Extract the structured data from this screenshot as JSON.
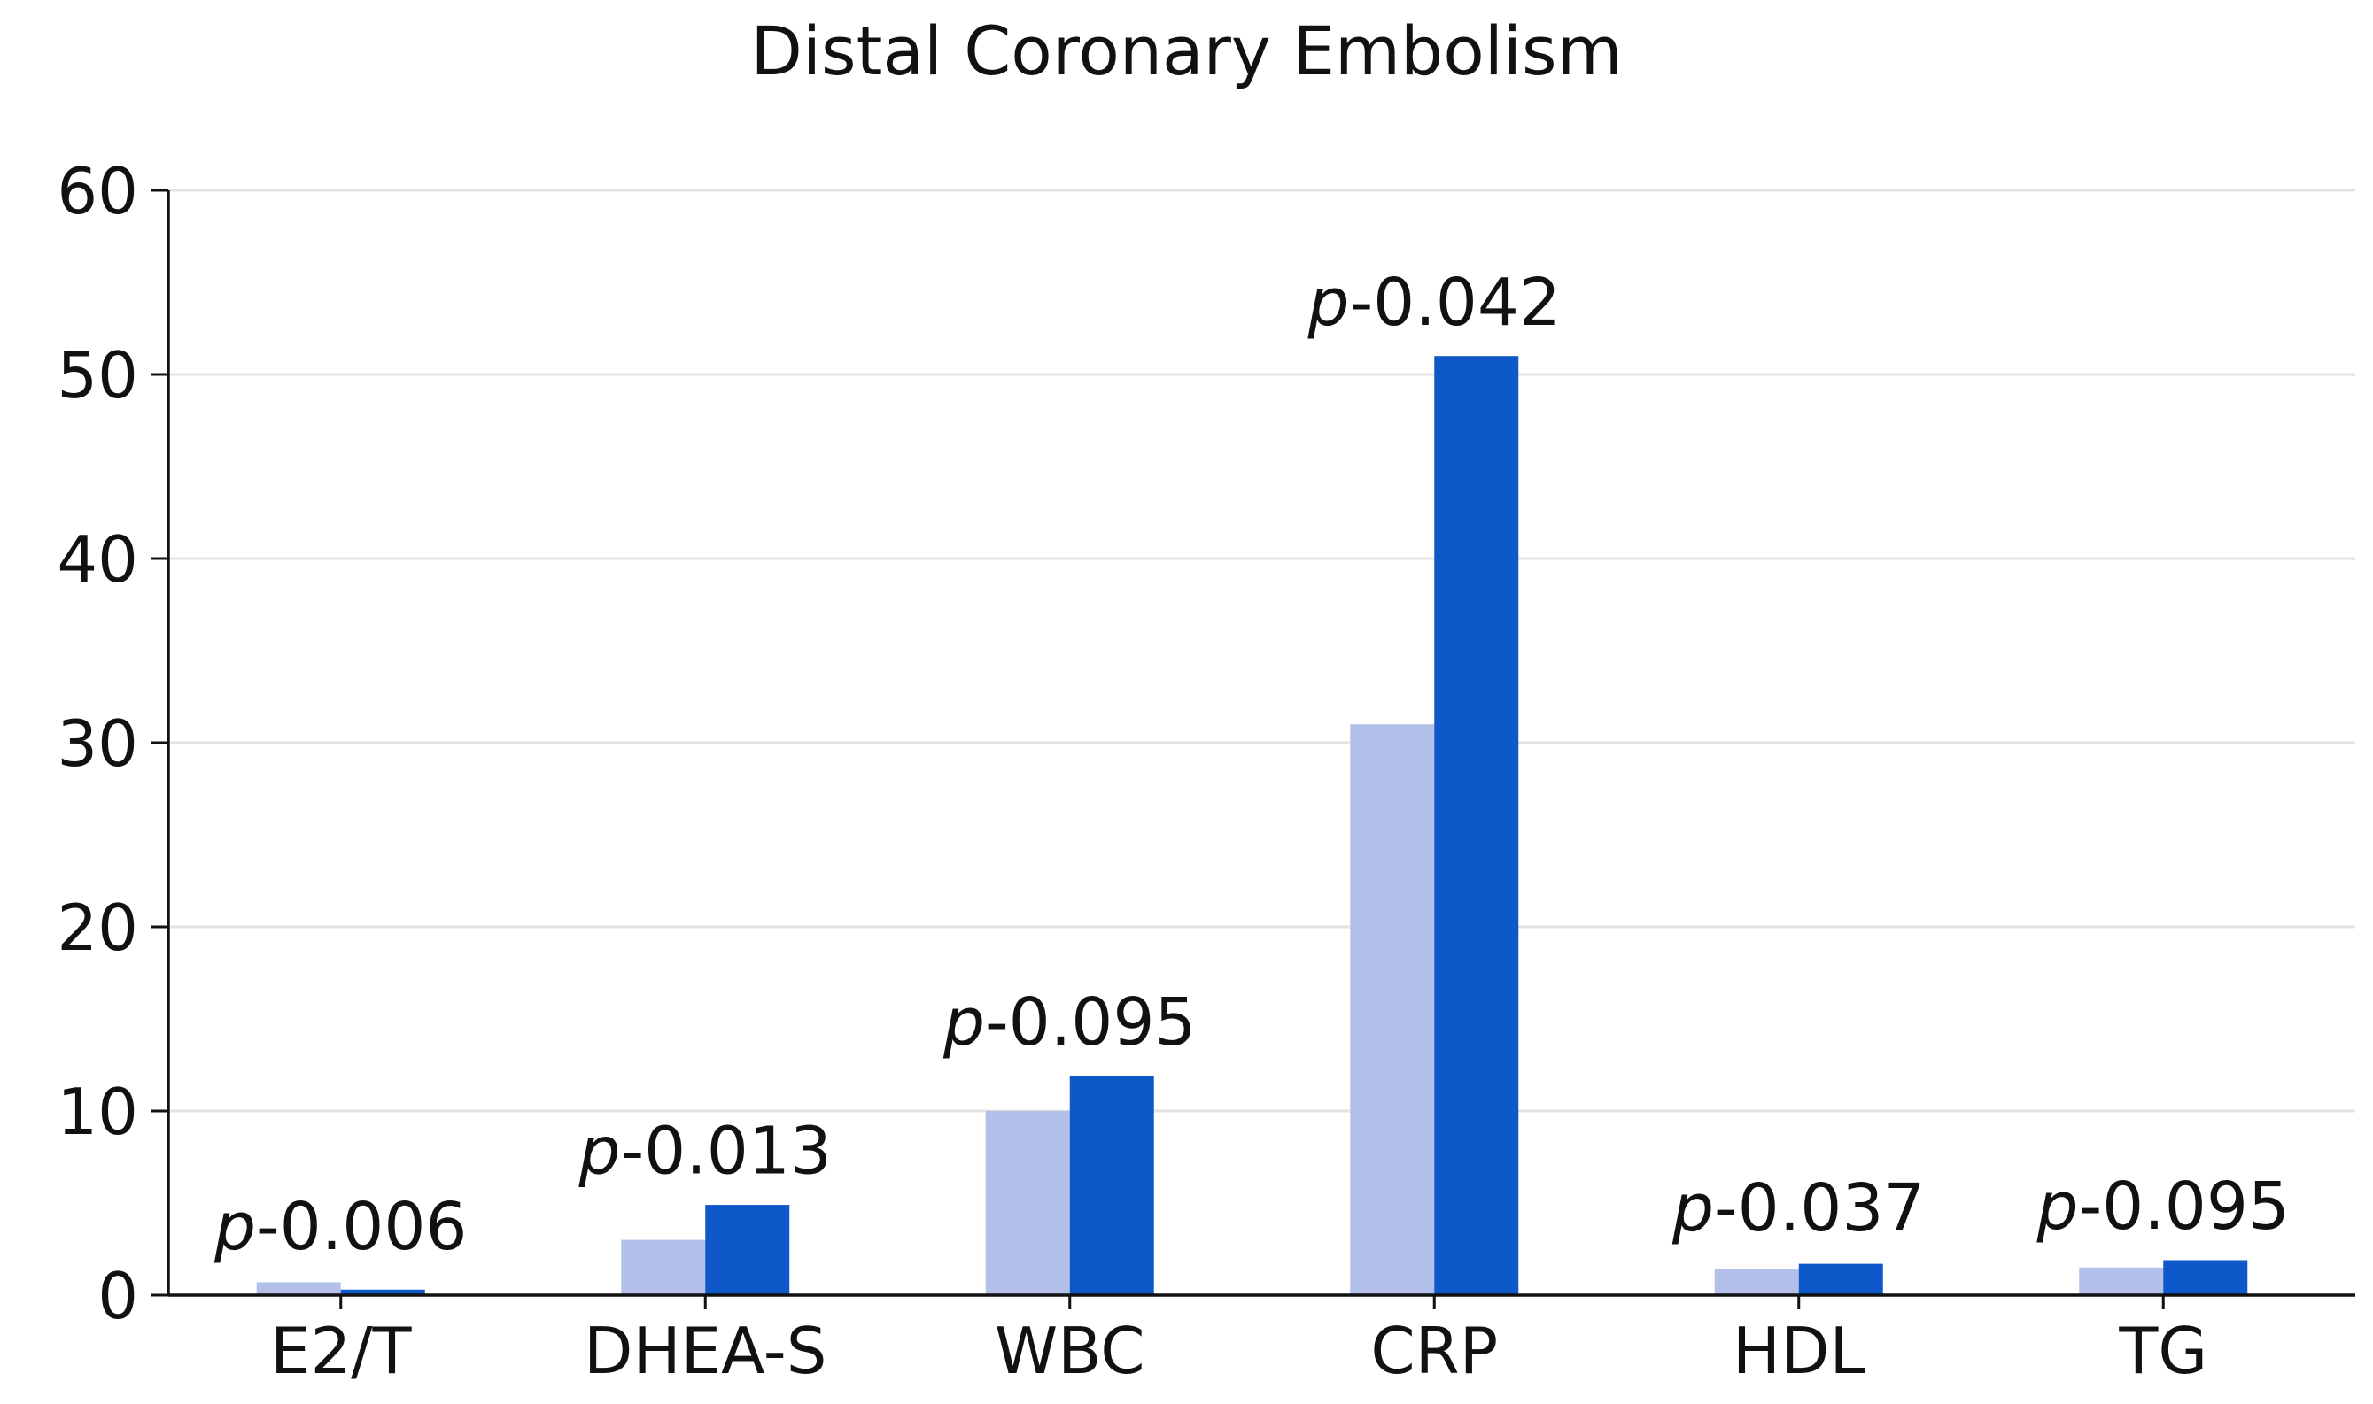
{
  "chart_data": {
    "type": "bar",
    "title": "Distal Coronary Embolism",
    "xlabel": "",
    "ylabel": "",
    "ylim": [
      0,
      60
    ],
    "yticks": [
      0,
      10,
      20,
      30,
      40,
      50,
      60
    ],
    "grid": true,
    "categories": [
      "E2/T",
      "DHEA-S",
      "WBC",
      "CRP",
      "HDL",
      "TG"
    ],
    "series": [
      {
        "values": [
          0.7,
          3.0,
          10.0,
          31.0,
          1.4,
          1.5
        ],
        "color": "#b3c0ea"
      },
      {
        "values": [
          0.3,
          4.9,
          11.9,
          51.0,
          1.7,
          1.9
        ],
        "color": "#0e58c9"
      }
    ],
    "annotations": [
      {
        "category": "E2/T",
        "prefix": "p",
        "text": "-0.006",
        "y": 2.5
      },
      {
        "category": "DHEA-S",
        "prefix": "p",
        "text": "-0.013",
        "y": 6.6
      },
      {
        "category": "WBC",
        "prefix": "p",
        "text": "-0.095",
        "y": 13.6
      },
      {
        "category": "CRP",
        "prefix": "p",
        "text": "-0.042",
        "y": 52.7
      },
      {
        "category": "HDL",
        "prefix": "p",
        "text": "-0.037",
        "y": 3.5
      },
      {
        "category": "TG",
        "prefix": "p",
        "text": "-0.095",
        "y": 3.6
      }
    ],
    "colors": {
      "grid": "#e3e3e3",
      "axis": "#111111",
      "text": "#111111"
    }
  }
}
